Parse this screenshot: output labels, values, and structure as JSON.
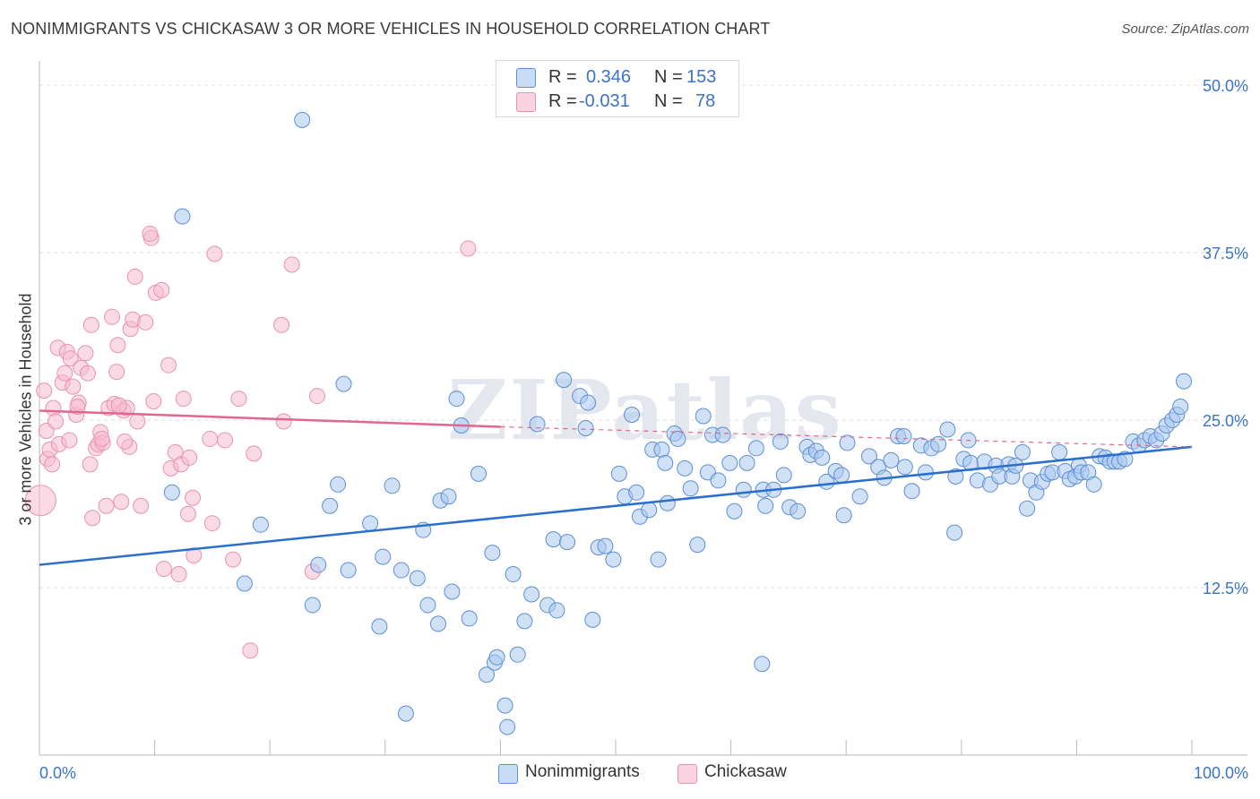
{
  "title": "NONIMMIGRANTS VS CHICKASAW 3 OR MORE VEHICLES IN HOUSEHOLD CORRELATION CHART",
  "source": "Source: ZipAtlas.com",
  "watermark": "ZIPatlas",
  "legend_top": {
    "rows": [
      {
        "r_label": "R =",
        "r_value": "0.346",
        "n_label": "N =",
        "n_value": "153"
      },
      {
        "r_label": "R =",
        "r_value": "-0.031",
        "n_label": "N =",
        "n_value": "78"
      }
    ]
  },
  "legend_bottom": {
    "series1": "Nonimmigrants",
    "series2": "Chickasaw"
  },
  "colors": {
    "blue_fill": "#a9c8ef",
    "blue_stroke": "#5d8fd4",
    "blue_line": "#2a6fcc",
    "pink_fill": "#f5bccd",
    "pink_stroke": "#e893ae",
    "pink_line": "#e0678f",
    "axis_text_blue": "#3b73c8",
    "grid": "#dcdcdc"
  },
  "chart_data": {
    "type": "scatter",
    "xlabel": "",
    "ylabel": "3 or more Vehicles in Household",
    "xlim": [
      0,
      100
    ],
    "ylim": [
      0,
      50
    ],
    "x_tick_labels": [
      "0.0%",
      "100.0%"
    ],
    "y_ticks": [
      12.5,
      25.0,
      37.5,
      50.0
    ],
    "y_tick_labels": [
      "12.5%",
      "25.0%",
      "37.5%",
      "50.0%"
    ],
    "grid": true,
    "legend_position": "top-center",
    "series": [
      {
        "name": "Nonimmigrants",
        "r": 0.346,
        "n": 153,
        "trend": {
          "x": [
            0,
            100
          ],
          "y": [
            14.2,
            23.0
          ]
        },
        "points": [
          [
            22.8,
            47.4
          ],
          [
            12.4,
            40.2
          ],
          [
            11.5,
            19.6
          ],
          [
            19.2,
            17.2
          ],
          [
            17.8,
            12.8
          ],
          [
            23.7,
            11.2
          ],
          [
            24.2,
            14.2
          ],
          [
            25.2,
            18.6
          ],
          [
            25.9,
            20.2
          ],
          [
            26.4,
            27.7
          ],
          [
            26.8,
            13.8
          ],
          [
            28.7,
            17.3
          ],
          [
            29.5,
            9.6
          ],
          [
            29.8,
            14.8
          ],
          [
            30.6,
            20.1
          ],
          [
            31.4,
            13.8
          ],
          [
            31.8,
            3.1
          ],
          [
            32.8,
            13.2
          ],
          [
            33.3,
            16.8
          ],
          [
            33.7,
            11.2
          ],
          [
            34.6,
            9.8
          ],
          [
            34.8,
            19.0
          ],
          [
            35.5,
            19.3
          ],
          [
            35.8,
            12.2
          ],
          [
            36.2,
            26.6
          ],
          [
            36.6,
            24.6
          ],
          [
            37.3,
            10.2
          ],
          [
            38.1,
            21.0
          ],
          [
            38.8,
            6.0
          ],
          [
            39.3,
            15.1
          ],
          [
            39.5,
            6.9
          ],
          [
            39.7,
            7.3
          ],
          [
            40.4,
            3.7
          ],
          [
            40.6,
            2.1
          ],
          [
            41.1,
            13.5
          ],
          [
            41.5,
            7.5
          ],
          [
            42.1,
            10.0
          ],
          [
            42.7,
            12.0
          ],
          [
            43.2,
            24.7
          ],
          [
            44.1,
            11.2
          ],
          [
            44.6,
            16.1
          ],
          [
            44.9,
            10.8
          ],
          [
            45.5,
            28.0
          ],
          [
            45.8,
            15.9
          ],
          [
            46.9,
            26.8
          ],
          [
            47.4,
            24.4
          ],
          [
            47.6,
            26.3
          ],
          [
            48.0,
            10.1
          ],
          [
            48.5,
            15.5
          ],
          [
            49.1,
            15.6
          ],
          [
            49.8,
            14.6
          ],
          [
            50.3,
            21.0
          ],
          [
            50.8,
            19.3
          ],
          [
            51.4,
            25.4
          ],
          [
            51.8,
            19.6
          ],
          [
            52.1,
            17.8
          ],
          [
            52.9,
            18.3
          ],
          [
            53.2,
            22.8
          ],
          [
            53.7,
            14.6
          ],
          [
            54.0,
            22.8
          ],
          [
            54.5,
            18.8
          ],
          [
            55.1,
            24.0
          ],
          [
            55.4,
            23.6
          ],
          [
            56.0,
            21.4
          ],
          [
            56.5,
            19.9
          ],
          [
            57.1,
            15.7
          ],
          [
            57.6,
            25.3
          ],
          [
            58.0,
            21.1
          ],
          [
            58.4,
            23.9
          ],
          [
            59.3,
            23.9
          ],
          [
            59.9,
            21.8
          ],
          [
            60.3,
            18.2
          ],
          [
            61.1,
            19.8
          ],
          [
            61.4,
            21.8
          ],
          [
            62.2,
            22.9
          ],
          [
            62.8,
            19.8
          ],
          [
            62.7,
            6.8
          ],
          [
            63.0,
            18.6
          ],
          [
            63.7,
            19.8
          ],
          [
            64.3,
            23.4
          ],
          [
            64.6,
            20.9
          ],
          [
            65.1,
            18.5
          ],
          [
            65.8,
            18.2
          ],
          [
            66.6,
            23.0
          ],
          [
            66.9,
            22.4
          ],
          [
            67.4,
            22.7
          ],
          [
            67.9,
            22.2
          ],
          [
            68.3,
            20.4
          ],
          [
            69.1,
            21.2
          ],
          [
            69.6,
            20.9
          ],
          [
            69.8,
            17.9
          ],
          [
            70.1,
            23.3
          ],
          [
            71.2,
            19.3
          ],
          [
            72.0,
            22.3
          ],
          [
            72.8,
            21.5
          ],
          [
            73.3,
            20.7
          ],
          [
            73.9,
            22.0
          ],
          [
            74.5,
            23.8
          ],
          [
            75.0,
            23.8
          ],
          [
            75.1,
            21.5
          ],
          [
            75.7,
            19.7
          ],
          [
            76.5,
            23.1
          ],
          [
            76.9,
            21.1
          ],
          [
            77.4,
            22.9
          ],
          [
            78.0,
            23.2
          ],
          [
            78.8,
            24.3
          ],
          [
            79.4,
            16.6
          ],
          [
            79.5,
            20.8
          ],
          [
            80.2,
            22.1
          ],
          [
            80.8,
            21.8
          ],
          [
            81.4,
            20.5
          ],
          [
            82.0,
            21.9
          ],
          [
            82.5,
            20.2
          ],
          [
            83.0,
            21.6
          ],
          [
            83.3,
            20.8
          ],
          [
            84.1,
            21.7
          ],
          [
            84.4,
            20.8
          ],
          [
            84.7,
            21.6
          ],
          [
            85.3,
            22.6
          ],
          [
            85.7,
            18.4
          ],
          [
            86.0,
            20.5
          ],
          [
            86.5,
            19.6
          ],
          [
            87.0,
            20.4
          ],
          [
            87.5,
            21.0
          ],
          [
            87.9,
            21.1
          ],
          [
            88.5,
            22.6
          ],
          [
            89.0,
            21.2
          ],
          [
            89.4,
            20.6
          ],
          [
            89.9,
            20.8
          ],
          [
            90.2,
            21.6
          ],
          [
            90.4,
            21.1
          ],
          [
            91.0,
            21.1
          ],
          [
            91.5,
            20.2
          ],
          [
            92.0,
            22.3
          ],
          [
            92.5,
            22.2
          ],
          [
            92.9,
            21.9
          ],
          [
            93.3,
            21.9
          ],
          [
            93.7,
            21.9
          ],
          [
            94.2,
            22.1
          ],
          [
            94.9,
            23.4
          ],
          [
            95.4,
            23.1
          ],
          [
            95.9,
            23.5
          ],
          [
            96.4,
            23.8
          ],
          [
            96.9,
            23.5
          ],
          [
            97.4,
            24.0
          ],
          [
            97.8,
            24.6
          ],
          [
            98.3,
            25.0
          ],
          [
            98.7,
            25.4
          ],
          [
            99.0,
            26.0
          ],
          [
            99.3,
            27.9
          ],
          [
            58.9,
            20.5
          ],
          [
            54.3,
            21.8
          ],
          [
            80.6,
            23.5
          ]
        ]
      },
      {
        "name": "Chickasaw",
        "r": -0.031,
        "n": 78,
        "trend": {
          "x": [
            0,
            40
          ],
          "y": [
            25.7,
            24.5
          ]
        },
        "trend_dashed": {
          "x": [
            40,
            100
          ],
          "y": [
            24.5,
            23.0
          ]
        },
        "points": [
          [
            0.1,
            19.0
          ],
          [
            0.4,
            27.2
          ],
          [
            0.6,
            24.2
          ],
          [
            0.7,
            22.1
          ],
          [
            0.9,
            22.8
          ],
          [
            1.2,
            25.9
          ],
          [
            1.4,
            24.9
          ],
          [
            1.6,
            30.4
          ],
          [
            1.7,
            23.2
          ],
          [
            2.0,
            27.8
          ],
          [
            2.2,
            28.5
          ],
          [
            2.4,
            30.1
          ],
          [
            2.6,
            23.5
          ],
          [
            2.7,
            29.6
          ],
          [
            2.9,
            27.5
          ],
          [
            3.2,
            25.4
          ],
          [
            3.4,
            26.3
          ],
          [
            3.6,
            28.9
          ],
          [
            4.0,
            30.0
          ],
          [
            4.2,
            28.5
          ],
          [
            4.4,
            21.7
          ],
          [
            4.5,
            32.1
          ],
          [
            4.6,
            17.7
          ],
          [
            4.9,
            22.9
          ],
          [
            5.1,
            23.2
          ],
          [
            5.3,
            24.1
          ],
          [
            5.5,
            23.3
          ],
          [
            5.8,
            18.6
          ],
          [
            6.0,
            25.9
          ],
          [
            6.3,
            32.7
          ],
          [
            6.5,
            26.2
          ],
          [
            6.7,
            28.6
          ],
          [
            6.8,
            30.6
          ],
          [
            7.1,
            18.9
          ],
          [
            7.3,
            25.7
          ],
          [
            7.6,
            25.9
          ],
          [
            7.8,
            23.0
          ],
          [
            7.9,
            31.8
          ],
          [
            8.1,
            32.5
          ],
          [
            8.3,
            35.7
          ],
          [
            8.5,
            24.9
          ],
          [
            8.8,
            18.6
          ],
          [
            9.2,
            32.3
          ],
          [
            9.7,
            38.6
          ],
          [
            9.9,
            26.4
          ],
          [
            10.1,
            34.5
          ],
          [
            10.6,
            34.7
          ],
          [
            10.8,
            13.9
          ],
          [
            11.2,
            29.1
          ],
          [
            11.4,
            21.4
          ],
          [
            11.8,
            22.6
          ],
          [
            12.1,
            13.5
          ],
          [
            12.3,
            21.7
          ],
          [
            12.5,
            26.6
          ],
          [
            13.0,
            22.2
          ],
          [
            13.3,
            19.2
          ],
          [
            13.4,
            14.9
          ],
          [
            14.8,
            23.6
          ],
          [
            15.0,
            17.3
          ],
          [
            15.2,
            37.4
          ],
          [
            16.1,
            23.5
          ],
          [
            16.8,
            14.6
          ],
          [
            17.3,
            26.6
          ],
          [
            18.3,
            7.8
          ],
          [
            18.6,
            22.5
          ],
          [
            21.0,
            32.1
          ],
          [
            21.2,
            24.9
          ],
          [
            21.9,
            36.6
          ],
          [
            23.7,
            13.7
          ],
          [
            24.1,
            26.8
          ],
          [
            37.2,
            37.8
          ],
          [
            9.6,
            38.9
          ],
          [
            3.3,
            26.0
          ],
          [
            5.4,
            23.6
          ],
          [
            7.4,
            23.4
          ],
          [
            1.1,
            21.7
          ],
          [
            6.9,
            26.1
          ],
          [
            12.9,
            18.0
          ]
        ]
      }
    ]
  }
}
